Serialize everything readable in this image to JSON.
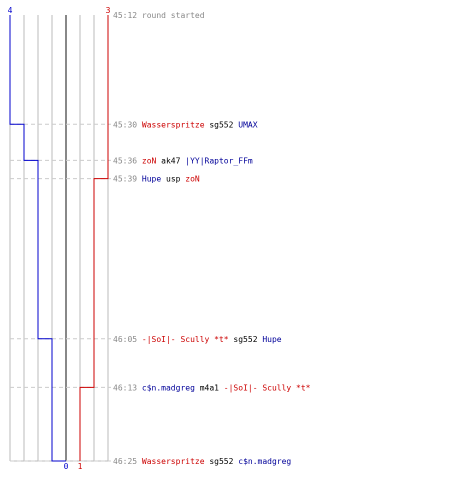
{
  "chart_data": {
    "type": "line",
    "title": "",
    "xlabel": "",
    "ylabel": "",
    "x_axis": {
      "min": 0,
      "max": 4,
      "ticks": [
        0,
        1,
        2,
        3,
        4
      ],
      "center_value": 0
    },
    "colors": {
      "blue": "#0000cc",
      "red": "#cc0000",
      "event_text_blue": "#000099",
      "grid": "#bbbbbb",
      "dash": "#cccccc",
      "center": "#888888"
    },
    "top_labels": {
      "blue": "4",
      "red": "3"
    },
    "bottom_labels": {
      "blue": "0",
      "red": "1"
    },
    "series": [
      {
        "color": "blue",
        "steps": [
          {
            "event": 0,
            "value": 4
          },
          {
            "event": 1,
            "value": 3
          },
          {
            "event": 2,
            "value": 2
          },
          {
            "event": 4,
            "value": 1
          },
          {
            "event": 6,
            "value": 0
          }
        ]
      },
      {
        "color": "red",
        "steps": [
          {
            "event": 0,
            "value": 3
          },
          {
            "event": 3,
            "value": 2
          },
          {
            "event": 5,
            "value": 1
          }
        ]
      }
    ],
    "events": [
      {
        "time": "45:12",
        "y_pos": 0.0,
        "parts": [
          {
            "text": "round started",
            "color": "gray"
          }
        ]
      },
      {
        "time": "45:30",
        "y_pos": 0.245,
        "parts": [
          {
            "text": "Wasserspritze",
            "color": "red"
          },
          {
            "text": "sg552",
            "color": "black"
          },
          {
            "text": "UMAX",
            "color": "blue"
          }
        ]
      },
      {
        "time": "45:36",
        "y_pos": 0.326,
        "parts": [
          {
            "text": "zoN",
            "color": "red"
          },
          {
            "text": "ak47",
            "color": "black"
          },
          {
            "text": "|YY|Raptor_FFm",
            "color": "blue"
          }
        ]
      },
      {
        "time": "45:39",
        "y_pos": 0.367,
        "parts": [
          {
            "text": "Hupe",
            "color": "blue"
          },
          {
            "text": "usp",
            "color": "black"
          },
          {
            "text": "zoN",
            "color": "red"
          }
        ]
      },
      {
        "time": "46:05",
        "y_pos": 0.726,
        "parts": [
          {
            "text": "-|SoI|- Scully *t*",
            "color": "red"
          },
          {
            "text": "sg552",
            "color": "black"
          },
          {
            "text": "Hupe",
            "color": "blue"
          }
        ]
      },
      {
        "time": "46:13",
        "y_pos": 0.835,
        "parts": [
          {
            "text": "c$n.madgreg",
            "color": "blue"
          },
          {
            "text": "m4a1",
            "color": "black"
          },
          {
            "text": "-|SoI|- Scully *t*",
            "color": "red"
          }
        ]
      },
      {
        "time": "46:25",
        "y_pos": 1.0,
        "parts": [
          {
            "text": "Wasserspritze",
            "color": "red"
          },
          {
            "text": "sg552",
            "color": "black"
          },
          {
            "text": "c$n.madgreg",
            "color": "blue"
          }
        ]
      }
    ]
  }
}
